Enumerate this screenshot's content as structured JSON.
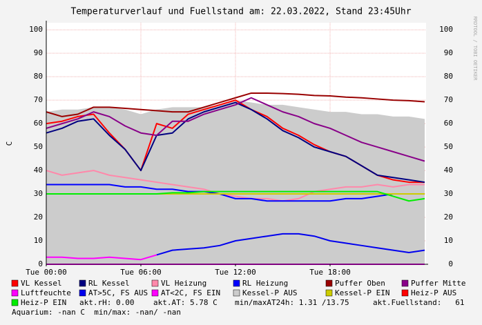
{
  "chart_data": {
    "type": "line",
    "title": "Temperaturverlauf und Fuellstand am: 22.03.2022, Stand 23:45Uhr",
    "y_label": "C",
    "side_text": "RRDTOOL / TOBI OETIKER",
    "xlim": [
      0,
      24
    ],
    "xticks": [
      {
        "value": 0,
        "label": "Tue 00:00"
      },
      {
        "value": 6,
        "label": "Tue 06:00"
      },
      {
        "value": 12,
        "label": "Tue 12:00"
      },
      {
        "value": 18,
        "label": "Tue 18:00"
      }
    ],
    "ylim": [
      0,
      103
    ],
    "yticks": [
      0,
      10,
      20,
      30,
      40,
      50,
      60,
      70,
      80,
      90,
      100
    ],
    "grid": true,
    "x": [
      0,
      1,
      2,
      3,
      4,
      5,
      6,
      7,
      8,
      9,
      10,
      11,
      12,
      13,
      14,
      15,
      16,
      17,
      18,
      19,
      20,
      21,
      22,
      23,
      24
    ],
    "series": [
      {
        "name": "Kessel-P AUS",
        "color": "#cccccc",
        "style": "area",
        "values": [
          65,
          66,
          66,
          67,
          67,
          66,
          64,
          66,
          67,
          67,
          67,
          68,
          70,
          69,
          68,
          68,
          67,
          66,
          65,
          65,
          64,
          64,
          63,
          63,
          62
        ]
      },
      {
        "name": "VL Kessel",
        "color": "#ff0000",
        "values": [
          60,
          61,
          63,
          64,
          56,
          49,
          40,
          60,
          58,
          64,
          66,
          68,
          70,
          66,
          63,
          58,
          55,
          51,
          48,
          46,
          42,
          38,
          36,
          35,
          35
        ]
      },
      {
        "name": "RL Kessel",
        "color": "#000080",
        "values": [
          56,
          58,
          61,
          62,
          55,
          49,
          40,
          55,
          56,
          62,
          65,
          67,
          69,
          66,
          62,
          57,
          54,
          50,
          48,
          46,
          42,
          38,
          37,
          36,
          35
        ]
      },
      {
        "name": "VL Heizung",
        "color": "#ff88aa",
        "values": [
          40,
          38,
          39,
          40,
          38,
          37,
          36,
          35,
          34,
          33,
          32,
          30,
          29,
          28,
          28,
          27,
          28,
          31,
          32,
          33,
          33,
          34,
          33,
          34,
          34
        ]
      },
      {
        "name": "RL Heizung",
        "color": "#0000ff",
        "values": [
          34,
          34,
          34,
          34,
          34,
          33,
          33,
          32,
          32,
          31,
          31,
          30,
          28,
          28,
          27,
          27,
          27,
          27,
          27,
          28,
          28,
          29,
          30,
          30,
          30
        ]
      },
      {
        "name": "Puffer Oben",
        "color": "#990000",
        "values": [
          65,
          63,
          64,
          67,
          67,
          66.5,
          66,
          65.5,
          65,
          65,
          67,
          69,
          71,
          73,
          73,
          72.8,
          72.5,
          72,
          71.8,
          71.3,
          71,
          70.5,
          70,
          69.8,
          69.3
        ]
      },
      {
        "name": "Puffer Mitte",
        "color": "#880088",
        "values": [
          58,
          60,
          62,
          65,
          63,
          59,
          56,
          55,
          61,
          61,
          64,
          66,
          68,
          71,
          68,
          65,
          63,
          60,
          58,
          55,
          52,
          50,
          48,
          46,
          44
        ]
      },
      {
        "name": "Luftfeuchte",
        "color": "#ff00ff",
        "values": [
          0,
          0,
          0,
          0,
          0,
          0,
          0,
          0,
          0,
          0,
          0,
          0,
          0,
          0,
          0,
          0,
          0,
          0,
          0,
          0,
          0,
          0,
          0,
          0,
          0
        ]
      },
      {
        "name": "AT>5C, FS AUS",
        "color": "#0000ee",
        "values": [
          null,
          null,
          null,
          null,
          null,
          null,
          null,
          4,
          6,
          6.5,
          7,
          8,
          10,
          11,
          12,
          13,
          13,
          12,
          10,
          9,
          8,
          7,
          6,
          5,
          6
        ]
      },
      {
        "name": "AT<2C, FS EIN",
        "color": "#ff00ff",
        "values": [
          3,
          3,
          2.5,
          2.5,
          3,
          2.5,
          2,
          4,
          null,
          null,
          null,
          null,
          null,
          null,
          null,
          null,
          null,
          null,
          null,
          null,
          null,
          null,
          null,
          null,
          null
        ]
      },
      {
        "name": "Kessel-P EIN",
        "color": "#cccc00",
        "values": [
          30,
          30,
          30,
          30,
          30,
          30,
          30,
          30,
          30,
          30,
          30,
          30,
          30,
          30,
          30,
          30,
          30,
          30,
          30,
          30,
          30,
          30,
          30,
          30,
          30
        ]
      },
      {
        "name": "Heiz-P AUS",
        "color": "#ff0000",
        "values": [
          null,
          null,
          null,
          null,
          null,
          null,
          null,
          null,
          null,
          null,
          null,
          null,
          null,
          null,
          null,
          null,
          null,
          null,
          null,
          null,
          null,
          null,
          null,
          null,
          null
        ]
      },
      {
        "name": "Heiz-P EIN",
        "color": "#00ee00",
        "values": [
          30,
          30,
          30,
          30,
          30,
          30,
          30,
          30,
          30.5,
          30.5,
          31,
          31,
          31,
          31,
          31,
          31,
          31,
          31,
          31,
          31,
          31,
          31,
          29,
          27,
          28
        ]
      }
    ],
    "legend_order": [
      1,
      2,
      3,
      4,
      5,
      6,
      7,
      8,
      9,
      0,
      10,
      11,
      12
    ],
    "notes": [
      "akt.rH: 0.00",
      "akt.AT: 5.78 C",
      "min/maxAT24h: 1.31 /13.75",
      "akt.Fuellstand:   61",
      "Aquarium: -nan C  min/max: -nan/ -nan"
    ]
  }
}
